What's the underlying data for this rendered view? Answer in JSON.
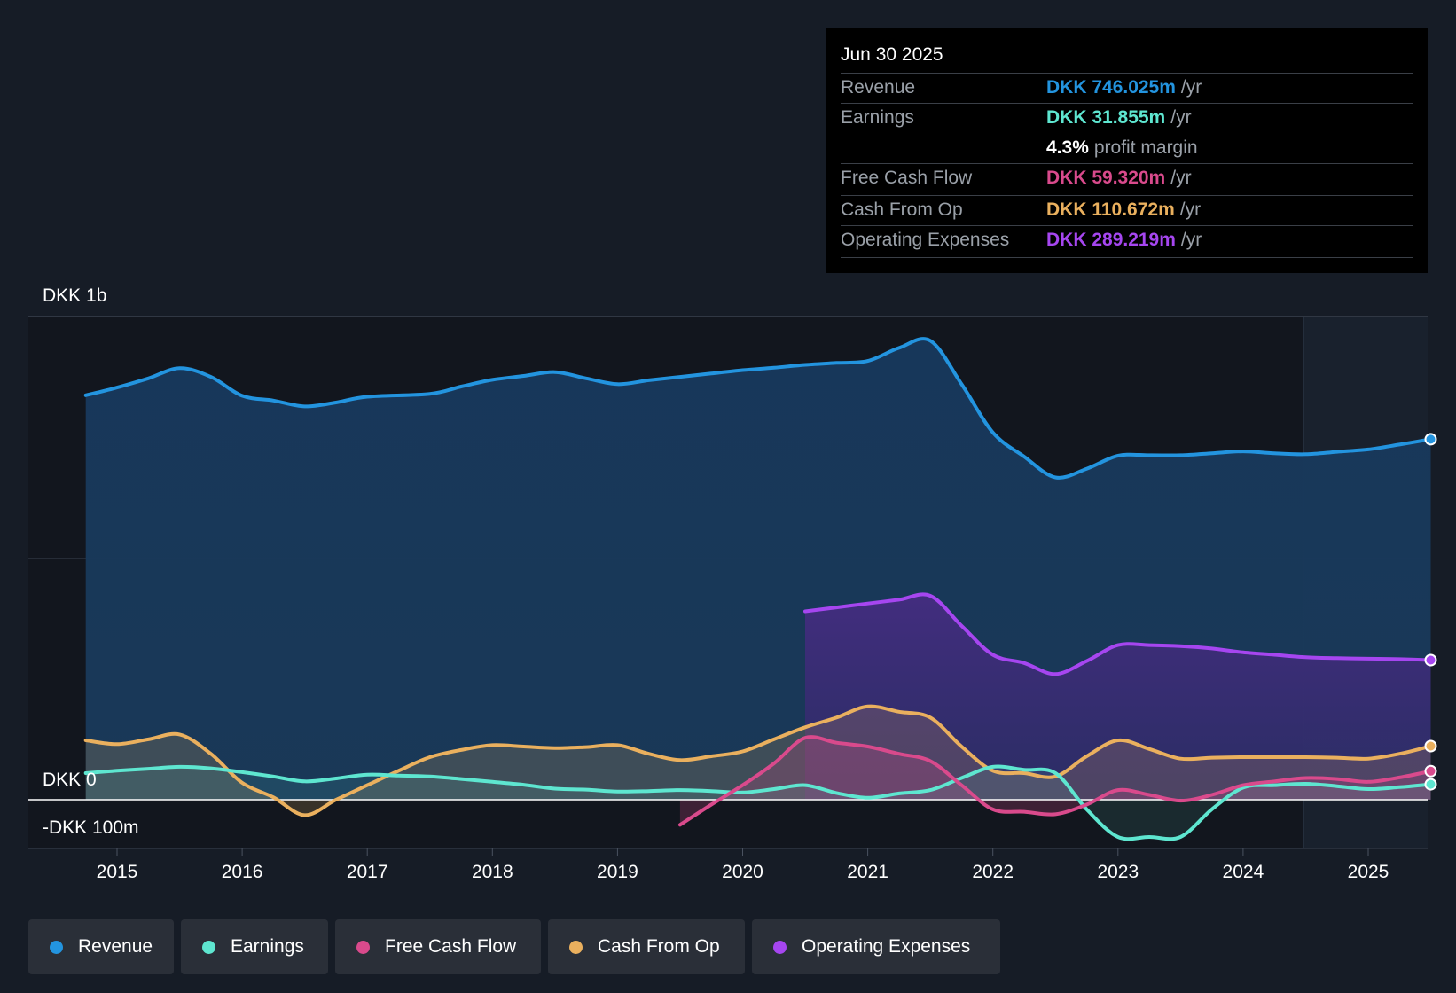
{
  "tooltip": {
    "date": "Jun 30 2025",
    "revenue_label": "Revenue",
    "revenue_value": "DKK 746.025m",
    "earnings_label": "Earnings",
    "earnings_value": "DKK 31.855m",
    "margin_value": "4.3%",
    "margin_text": "profit margin",
    "fcf_label": "Free Cash Flow",
    "fcf_value": "DKK 59.320m",
    "cfo_label": "Cash From Op",
    "cfo_value": "DKK 110.672m",
    "opex_label": "Operating Expenses",
    "opex_value": "DKK 289.219m",
    "unit": "/yr"
  },
  "legend": [
    {
      "label": "Revenue",
      "color": "#2394df"
    },
    {
      "label": "Earnings",
      "color": "#5ee6d0"
    },
    {
      "label": "Free Cash Flow",
      "color": "#d94a8c"
    },
    {
      "label": "Cash From Op",
      "color": "#eab05e"
    },
    {
      "label": "Operating Expenses",
      "color": "#a646f0"
    }
  ],
  "chart_data": {
    "type": "area",
    "ylim": [
      -100,
      1000
    ],
    "y_tick_labels": [
      "DKK 1b",
      "DKK 0",
      "-DKK 100m"
    ],
    "categories": [
      "2015",
      "2016",
      "2017",
      "2018",
      "2019",
      "2020",
      "2021",
      "2022",
      "2023",
      "2024",
      "2025"
    ],
    "series": [
      {
        "name": "Revenue",
        "color": "#2394df",
        "points": [
          [
            2014.75,
            837
          ],
          [
            2015.0,
            853
          ],
          [
            2015.25,
            872
          ],
          [
            2015.5,
            893
          ],
          [
            2015.75,
            875
          ],
          [
            2016.0,
            836
          ],
          [
            2016.25,
            826
          ],
          [
            2016.5,
            814
          ],
          [
            2016.75,
            822
          ],
          [
            2017.0,
            834
          ],
          [
            2017.5,
            840
          ],
          [
            2017.75,
            855
          ],
          [
            2018.0,
            869
          ],
          [
            2018.25,
            877
          ],
          [
            2018.5,
            885
          ],
          [
            2018.75,
            872
          ],
          [
            2019.0,
            860
          ],
          [
            2019.25,
            868
          ],
          [
            2019.5,
            875
          ],
          [
            2019.75,
            882
          ],
          [
            2020.0,
            889
          ],
          [
            2020.25,
            894
          ],
          [
            2020.5,
            900
          ],
          [
            2020.75,
            904
          ],
          [
            2021.0,
            908
          ],
          [
            2021.25,
            935
          ],
          [
            2021.5,
            950
          ],
          [
            2021.75,
            860
          ],
          [
            2022.0,
            760
          ],
          [
            2022.25,
            710
          ],
          [
            2022.5,
            667
          ],
          [
            2022.75,
            685
          ],
          [
            2023.0,
            712
          ],
          [
            2023.25,
            713
          ],
          [
            2023.5,
            713
          ],
          [
            2023.75,
            717
          ],
          [
            2024.0,
            721
          ],
          [
            2024.25,
            717
          ],
          [
            2024.5,
            715
          ],
          [
            2024.75,
            720
          ],
          [
            2025.0,
            725
          ],
          [
            2025.25,
            735
          ],
          [
            2025.5,
            746
          ]
        ]
      },
      {
        "name": "Earnings",
        "color": "#5ee6d0",
        "points": [
          [
            2014.75,
            55
          ],
          [
            2015.0,
            60
          ],
          [
            2015.25,
            64
          ],
          [
            2015.5,
            68
          ],
          [
            2015.75,
            65
          ],
          [
            2016.0,
            57
          ],
          [
            2016.25,
            48
          ],
          [
            2016.5,
            38
          ],
          [
            2016.75,
            44
          ],
          [
            2017.0,
            52
          ],
          [
            2017.25,
            50
          ],
          [
            2017.5,
            48
          ],
          [
            2017.75,
            43
          ],
          [
            2018.0,
            37
          ],
          [
            2018.25,
            31
          ],
          [
            2018.5,
            23
          ],
          [
            2018.75,
            21
          ],
          [
            2019.0,
            17
          ],
          [
            2019.25,
            18
          ],
          [
            2019.5,
            20
          ],
          [
            2019.75,
            18
          ],
          [
            2020.0,
            15
          ],
          [
            2020.25,
            22
          ],
          [
            2020.5,
            30
          ],
          [
            2020.75,
            14
          ],
          [
            2021.0,
            4
          ],
          [
            2021.25,
            13
          ],
          [
            2021.5,
            20
          ],
          [
            2021.75,
            45
          ],
          [
            2022.0,
            68
          ],
          [
            2022.25,
            62
          ],
          [
            2022.5,
            55
          ],
          [
            2022.75,
            -20
          ],
          [
            2023.0,
            -77
          ],
          [
            2023.25,
            -77
          ],
          [
            2023.5,
            -77
          ],
          [
            2023.75,
            -20
          ],
          [
            2024.0,
            25
          ],
          [
            2024.25,
            30
          ],
          [
            2024.5,
            33
          ],
          [
            2024.75,
            28
          ],
          [
            2025.0,
            22
          ],
          [
            2025.25,
            26
          ],
          [
            2025.5,
            32
          ]
        ]
      },
      {
        "name": "Free Cash Flow",
        "color": "#d94a8c",
        "points": [
          [
            2019.5,
            -52
          ],
          [
            2019.75,
            -10
          ],
          [
            2020.0,
            30
          ],
          [
            2020.25,
            75
          ],
          [
            2020.5,
            128
          ],
          [
            2020.75,
            118
          ],
          [
            2021.0,
            110
          ],
          [
            2021.25,
            95
          ],
          [
            2021.5,
            80
          ],
          [
            2021.75,
            30
          ],
          [
            2022.0,
            -20
          ],
          [
            2022.25,
            -25
          ],
          [
            2022.5,
            -30
          ],
          [
            2022.75,
            -10
          ],
          [
            2023.0,
            20
          ],
          [
            2023.25,
            10
          ],
          [
            2023.5,
            -2
          ],
          [
            2023.75,
            10
          ],
          [
            2024.0,
            30
          ],
          [
            2024.25,
            38
          ],
          [
            2024.5,
            45
          ],
          [
            2024.75,
            43
          ],
          [
            2025.0,
            37
          ],
          [
            2025.25,
            46
          ],
          [
            2025.5,
            59
          ]
        ]
      },
      {
        "name": "Cash From Op",
        "color": "#eab05e",
        "points": [
          [
            2014.75,
            123
          ],
          [
            2015.0,
            115
          ],
          [
            2015.25,
            125
          ],
          [
            2015.5,
            135
          ],
          [
            2015.75,
            95
          ],
          [
            2016.0,
            35
          ],
          [
            2016.25,
            5
          ],
          [
            2016.5,
            -32
          ],
          [
            2016.75,
            0
          ],
          [
            2017.0,
            30
          ],
          [
            2017.25,
            60
          ],
          [
            2017.5,
            88
          ],
          [
            2017.75,
            103
          ],
          [
            2018.0,
            113
          ],
          [
            2018.25,
            110
          ],
          [
            2018.5,
            107
          ],
          [
            2018.75,
            109
          ],
          [
            2019.0,
            113
          ],
          [
            2019.25,
            95
          ],
          [
            2019.5,
            82
          ],
          [
            2019.75,
            90
          ],
          [
            2020.0,
            100
          ],
          [
            2020.25,
            125
          ],
          [
            2020.5,
            150
          ],
          [
            2020.75,
            170
          ],
          [
            2021.0,
            193
          ],
          [
            2021.25,
            182
          ],
          [
            2021.5,
            170
          ],
          [
            2021.75,
            110
          ],
          [
            2022.0,
            60
          ],
          [
            2022.25,
            55
          ],
          [
            2022.5,
            48
          ],
          [
            2022.75,
            90
          ],
          [
            2023.0,
            123
          ],
          [
            2023.25,
            105
          ],
          [
            2023.5,
            85
          ],
          [
            2023.75,
            87
          ],
          [
            2024.0,
            88
          ],
          [
            2024.25,
            88
          ],
          [
            2024.5,
            88
          ],
          [
            2024.75,
            87
          ],
          [
            2025.0,
            85
          ],
          [
            2025.25,
            95
          ],
          [
            2025.5,
            111
          ]
        ]
      },
      {
        "name": "Operating Expenses",
        "color": "#a646f0",
        "points": [
          [
            2020.5,
            390
          ],
          [
            2020.75,
            398
          ],
          [
            2021.0,
            406
          ],
          [
            2021.25,
            414
          ],
          [
            2021.5,
            422
          ],
          [
            2021.75,
            360
          ],
          [
            2022.0,
            300
          ],
          [
            2022.25,
            283
          ],
          [
            2022.5,
            260
          ],
          [
            2022.75,
            287
          ],
          [
            2023.0,
            320
          ],
          [
            2023.25,
            320
          ],
          [
            2023.5,
            318
          ],
          [
            2023.75,
            313
          ],
          [
            2024.0,
            305
          ],
          [
            2024.25,
            300
          ],
          [
            2024.5,
            295
          ],
          [
            2024.75,
            293
          ],
          [
            2025.0,
            292
          ],
          [
            2025.25,
            291
          ],
          [
            2025.5,
            289
          ]
        ]
      }
    ]
  }
}
